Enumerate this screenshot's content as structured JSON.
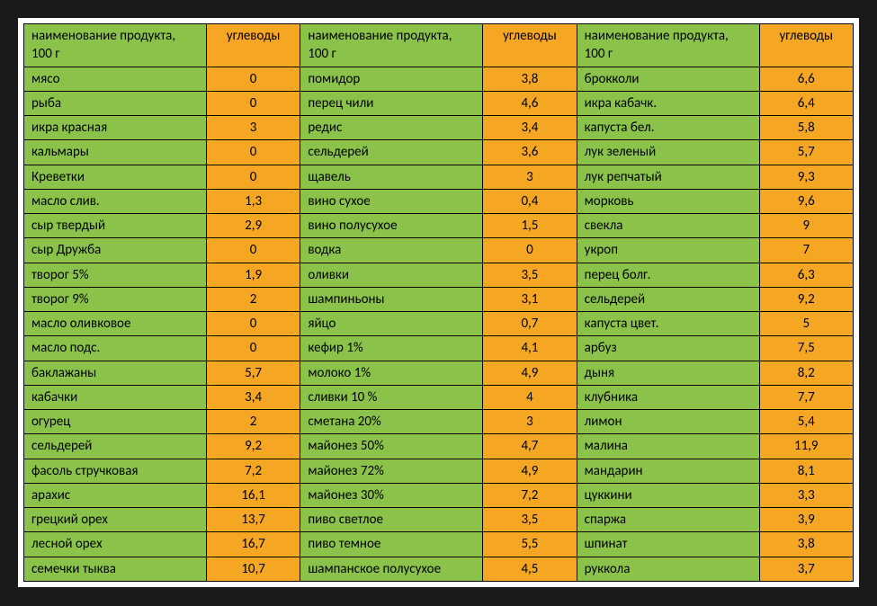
{
  "styling": {
    "name_bg": "#8bc34a",
    "carb_bg": "#f5a623",
    "border_color": "#000000",
    "page_bg": "#1a1a1a",
    "container_bg": "#ffffff",
    "font_family": "Calibri, Arial, sans-serif",
    "cell_fontsize": 15,
    "name_col_width_pct": 22,
    "carb_col_width_pct": 11.33,
    "name_align": "left",
    "carb_align": "center"
  },
  "header": {
    "name_label": "наименование продукта, 100 г",
    "carb_label": "углеводы"
  },
  "rows": [
    {
      "n1": "мясо",
      "c1": "0",
      "n2": "помидор",
      "c2": "3,8",
      "n3": "брокколи",
      "c3": "6,6"
    },
    {
      "n1": "рыба",
      "c1": "0",
      "n2": "перец чили",
      "c2": "4,6",
      "n3": "икра кабачк.",
      "c3": "6,4"
    },
    {
      "n1": "икра красная",
      "c1": "3",
      "n2": "редис",
      "c2": "3,4",
      "n3": "капуста бел.",
      "c3": "5,8"
    },
    {
      "n1": "кальмары",
      "c1": "0",
      "n2": "сельдерей",
      "c2": "3,6",
      "n3": "лук зеленый",
      "c3": "5,7"
    },
    {
      "n1": "Креветки",
      "c1": "0",
      "n2": "щавель",
      "c2": "3",
      "n3": "лук репчатый",
      "c3": "9,3"
    },
    {
      "n1": "масло слив.",
      "c1": "1,3",
      "n2": "вино сухое",
      "c2": "0,4",
      "n3": "морковь",
      "c3": "9,6"
    },
    {
      "n1": "сыр твердый",
      "c1": "2,9",
      "n2": "вино полусухое",
      "c2": "1,5",
      "n3": "свекла",
      "c3": "9"
    },
    {
      "n1": "сыр Дружба",
      "c1": "0",
      "n2": "водка",
      "c2": "0",
      "n3": "укроп",
      "c3": "7"
    },
    {
      "n1": "творог 5%",
      "c1": "1,9",
      "n2": "оливки",
      "c2": "3,5",
      "n3": "перец болг.",
      "c3": "6,3"
    },
    {
      "n1": "творог 9%",
      "c1": "2",
      "n2": "шампиньоны",
      "c2": "3,1",
      "n3": "сельдерей",
      "c3": "9,2"
    },
    {
      "n1": "масло оливковое",
      "c1": "0",
      "n2": "яйцо",
      "c2": "0,7",
      "n3": "капуста цвет.",
      "c3": "5"
    },
    {
      "n1": "масло подс.",
      "c1": "0",
      "n2": "кефир 1%",
      "c2": "4,1",
      "n3": "арбуз",
      "c3": "7,5"
    },
    {
      "n1": "баклажаны",
      "c1": "5,7",
      "n2": "молоко 1%",
      "c2": "4,9",
      "n3": "дыня",
      "c3": "8,2"
    },
    {
      "n1": "кабачки",
      "c1": "3,4",
      "n2": "сливки 10 %",
      "c2": "4",
      "n3": "клубника",
      "c3": "7,7"
    },
    {
      "n1": "огурец",
      "c1": "2",
      "n2": "сметана 20%",
      "c2": "3",
      "n3": "лимон",
      "c3": "5,4"
    },
    {
      "n1": "сельдерей",
      "c1": "9,2",
      "n2": "майонез 50%",
      "c2": "4,7",
      "n3": "малина",
      "c3": "11,9"
    },
    {
      "n1": "фасоль стручковая",
      "c1": "7,2",
      "n2": "майонез 72%",
      "c2": "4,9",
      "n3": "мандарин",
      "c3": "8,1"
    },
    {
      "n1": "арахис",
      "c1": "16,1",
      "n2": "майонез 30%",
      "c2": "7,2",
      "n3": "цуккини",
      "c3": "3,3"
    },
    {
      "n1": "грецкий орех",
      "c1": "13,7",
      "n2": "пиво светлое",
      "c2": "3,5",
      "n3": "спаржа",
      "c3": "3,9"
    },
    {
      "n1": "лесной орех",
      "c1": "16,7",
      "n2": "пиво темное",
      "c2": "5,5",
      "n3": "шпинат",
      "c3": "3,8"
    },
    {
      "n1": "семечки тыква",
      "c1": "10,7",
      "n2": "шампанское полусухое",
      "c2": "4,5",
      "n3": "руккола",
      "c3": "3,7"
    }
  ]
}
